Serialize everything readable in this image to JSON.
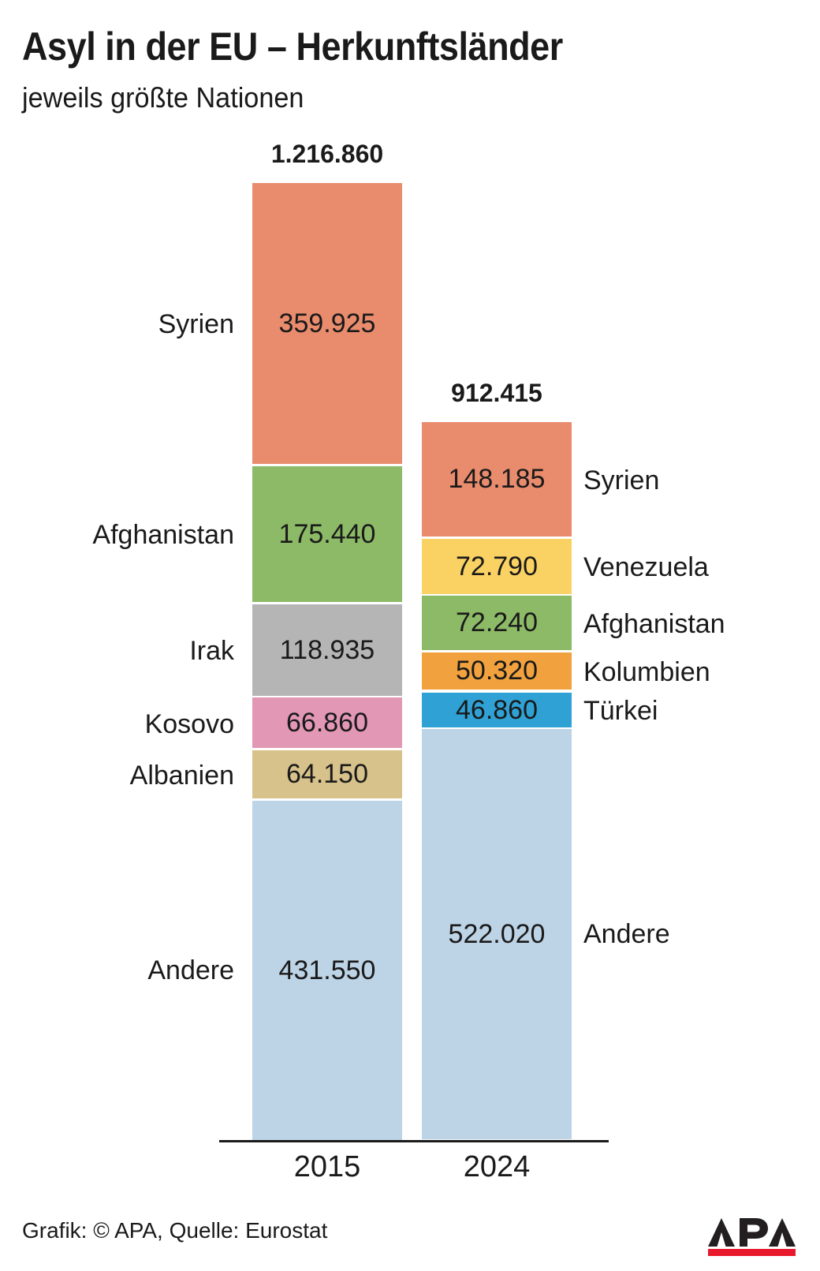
{
  "title": "Asyl in der EU – Herkunftsländer",
  "subtitle": "jeweils größte Nationen",
  "footer": {
    "credit": "Grafik: © APA, Quelle: Eurostat",
    "logo_text": "APA"
  },
  "colors": {
    "text": "#1a1a1a",
    "axis": "#1a1a1a",
    "background": "#ffffff",
    "segment_gap": "#ffffff",
    "logo_black": "#231f20",
    "logo_red": "#e8192c"
  },
  "chart_data": {
    "type": "bar",
    "stacked": true,
    "grid": false,
    "legend": "labels beside bars",
    "categories": [
      "2015",
      "2024"
    ],
    "bars": [
      {
        "category": "2015",
        "total": 1216860,
        "total_label": "1.216.860",
        "label_side": "left",
        "segments": [
          {
            "name": "Syrien",
            "value": 359925,
            "value_label": "359.925",
            "color": "#e88c6d"
          },
          {
            "name": "Afghanistan",
            "value": 175440,
            "value_label": "175.440",
            "color": "#8cba66"
          },
          {
            "name": "Irak",
            "value": 118935,
            "value_label": "118.935",
            "color": "#b5b5b5"
          },
          {
            "name": "Kosovo",
            "value": 66860,
            "value_label": "66.860",
            "color": "#e297b4"
          },
          {
            "name": "Albanien",
            "value": 64150,
            "value_label": "64.150",
            "color": "#d8c28b"
          },
          {
            "name": "Andere",
            "value": 431550,
            "value_label": "431.550",
            "color": "#bdd3e6"
          }
        ]
      },
      {
        "category": "2024",
        "total": 912415,
        "total_label": "912.415",
        "label_side": "right",
        "segments": [
          {
            "name": "Syrien",
            "value": 148185,
            "value_label": "148.185",
            "color": "#e88c6d"
          },
          {
            "name": "Venezuela",
            "value": 72790,
            "value_label": "72.790",
            "color": "#fad263"
          },
          {
            "name": "Afghanistan",
            "value": 72240,
            "value_label": "72.240",
            "color": "#8cba66"
          },
          {
            "name": "Kolumbien",
            "value": 50320,
            "value_label": "50.320",
            "color": "#f1a23e"
          },
          {
            "name": "Türkei",
            "value": 46860,
            "value_label": "46.860",
            "color": "#2fa1d5"
          },
          {
            "name": "Andere",
            "value": 522020,
            "value_label": "522.020",
            "color": "#bdd3e6"
          }
        ]
      }
    ]
  }
}
